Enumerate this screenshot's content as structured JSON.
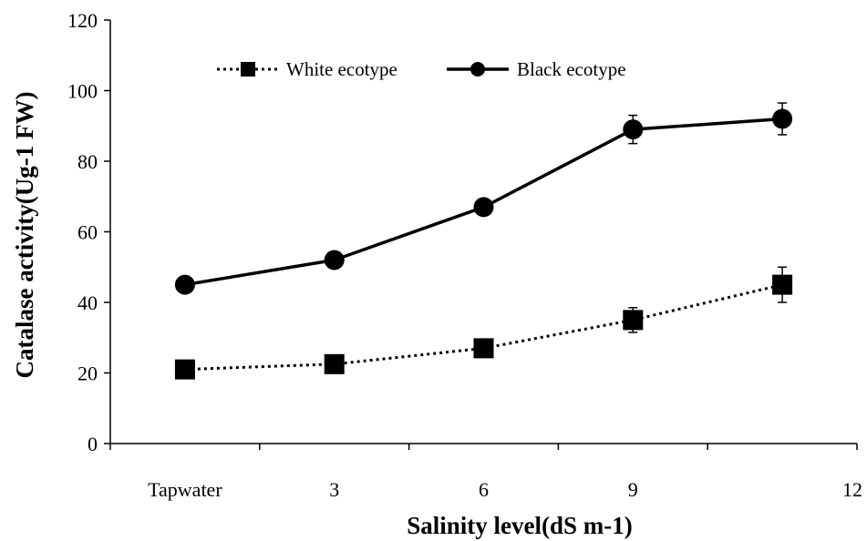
{
  "chart_data": {
    "type": "line",
    "categories": [
      "Tapwater",
      "3",
      "6",
      "9",
      "12"
    ],
    "xlabel": "Salinity level(dS m-1)",
    "ylabel": "Catalase activity(Ug-1 FW)",
    "ylim": [
      0,
      120
    ],
    "yticks": [
      0,
      20,
      40,
      60,
      80,
      100,
      120
    ],
    "legend_position": "top-left",
    "grid": false,
    "series": [
      {
        "name": "White ecotype",
        "marker": "square",
        "line_style": "dotted",
        "color": "#000000",
        "values": [
          21,
          22.5,
          27,
          35,
          45
        ],
        "errors": [
          1,
          1.5,
          1.5,
          3.5,
          5
        ]
      },
      {
        "name": "Black ecotype",
        "marker": "circle",
        "line_style": "solid",
        "color": "#000000",
        "values": [
          45,
          52,
          67,
          89,
          92
        ],
        "errors": [
          1,
          1,
          1.5,
          4,
          4.5
        ]
      }
    ]
  }
}
